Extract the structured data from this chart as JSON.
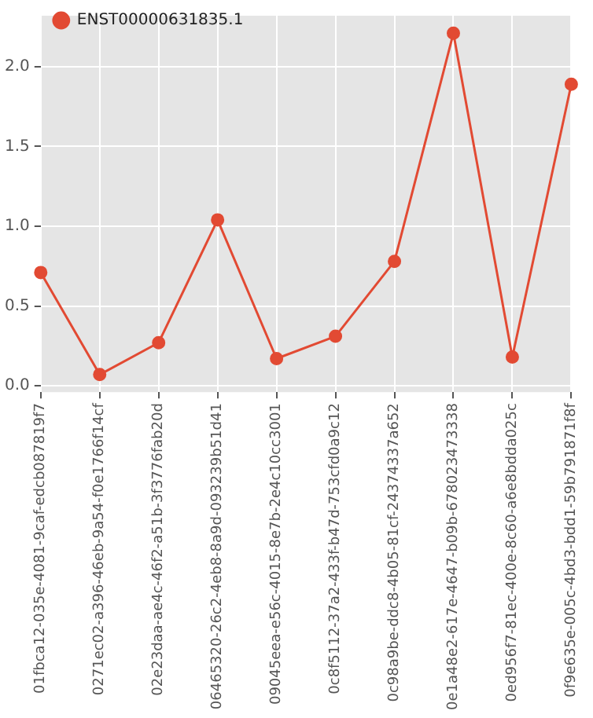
{
  "chart_data": {
    "type": "line",
    "categories": [
      "01fbca12-035e-4081-9caf-edcb087819f7",
      "0271ec02-a396-46eb-9a54-f0e1766f14cf",
      "02e23daa-ae4c-46f2-a51b-3f3776fab20d",
      "06465320-26c2-4eb8-8a9d-093239b51d41",
      "09045eea-e56c-4015-8e7b-2e4c10cc3001",
      "0c8f5112-37a2-433f-b47d-753cfd0a9c12",
      "0c98a9be-ddc8-4b05-81cf-24374337a652",
      "0e1a48e2-617e-4647-b09b-678023473338",
      "0ed956f7-81ec-400e-8c60-a6e8bdda025c",
      "0f9e635e-005c-4bd3-bdd1-59b791871f8f"
    ],
    "series": [
      {
        "name": "ENST00000631835.1",
        "color": "#e24a33",
        "values": [
          0.71,
          0.07,
          0.27,
          1.04,
          0.17,
          0.31,
          0.78,
          2.21,
          0.18,
          1.89
        ]
      }
    ],
    "ylim": [
      -0.04,
      2.32
    ],
    "yticks": [
      {
        "value": 0,
        "label": "0.0"
      },
      {
        "value": 0.5,
        "label": "0.5"
      },
      {
        "value": 1,
        "label": "1.0"
      },
      {
        "value": 1.5,
        "label": "1.5"
      },
      {
        "value": 2,
        "label": "2.0"
      }
    ],
    "grid": true,
    "legend": "top left",
    "marker": "circle",
    "line_style": "solid"
  }
}
